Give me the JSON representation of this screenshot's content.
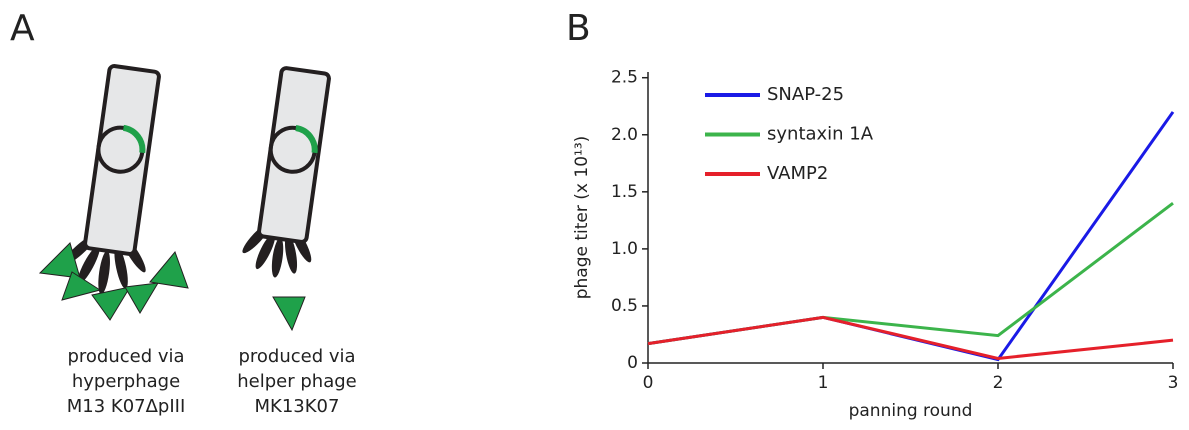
{
  "panel_a": {
    "label": "A",
    "captions": [
      [
        "produced via",
        "hyperphage",
        "M13 K07ΔpIII"
      ],
      [
        "produced via",
        "helper phage",
        "MK13K07"
      ]
    ]
  },
  "chart_data": {
    "type": "line",
    "panel_label": "B",
    "x_label": "panning round",
    "y_label": "phage titer (x 10¹³)",
    "x": [
      0,
      1,
      2,
      3
    ],
    "xlim": [
      0,
      3
    ],
    "xticks": [
      0,
      1,
      2,
      3
    ],
    "ylim": [
      0,
      2.55
    ],
    "yticks": [
      0,
      0.5,
      {
        "value": 1,
        "label": "1.0"
      },
      1.5,
      {
        "value": 2,
        "label": "2.0"
      },
      2.5
    ],
    "series": [
      {
        "name": "SNAP-25",
        "color": "#1a1ae6",
        "values": [
          0.17,
          0.4,
          0.03,
          2.2
        ]
      },
      {
        "name": "syntaxin 1A",
        "color": "#3cb44b",
        "values": [
          0.17,
          0.4,
          0.24,
          1.4
        ]
      },
      {
        "name": "VAMP2",
        "color": "#e5202a",
        "values": [
          0.17,
          0.4,
          0.04,
          0.2
        ]
      }
    ]
  }
}
